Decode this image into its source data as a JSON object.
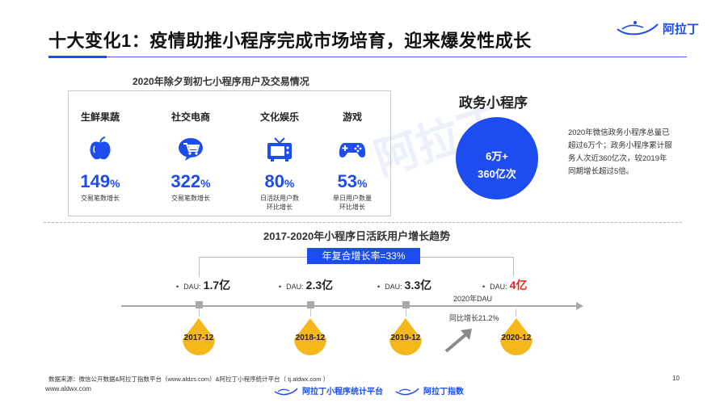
{
  "header": {
    "title": "十大变化1：疫情助推小程序完成市场培育，迎来爆发性成长",
    "logo_text": "阿拉丁"
  },
  "watermark": "阿拉丁",
  "left_panel": {
    "title": "2020年除夕到初七小程序用户及交易情况",
    "categories": [
      {
        "name": "生鲜果蔬",
        "icon": "apple-icon",
        "value": "149",
        "unit": "%",
        "desc": "交易笔数增长",
        "desc2": ""
      },
      {
        "name": "社交电商",
        "icon": "shopping-cart-icon",
        "value": "322",
        "unit": "%",
        "desc": "交易笔数增长",
        "desc2": ""
      },
      {
        "name": "文化娱乐",
        "icon": "tv-icon",
        "value": "80",
        "unit": "%",
        "desc": "日活跃用户数",
        "desc2": "环比增长"
      },
      {
        "name": "游戏",
        "icon": "gamepad-icon",
        "value": "53",
        "unit": "%",
        "desc": "单日用户数量",
        "desc2": "环比增长"
      }
    ]
  },
  "gov_panel": {
    "title": "政务小程序",
    "circle_line1": "6万+",
    "circle_line2": "360亿次",
    "desc": "2020年微信政务小程序总量已超过6万个；政务小程序累计服务人次近360亿次，较2019年同期增长超过5倍。"
  },
  "trend": {
    "title": "2017-2020年小程序日活跃用户增长趋势",
    "cagr": "年复合增长率=33%",
    "points": [
      {
        "year": "2017-12",
        "dau_label": "DAU:",
        "dau_value": "1.7亿"
      },
      {
        "year": "2018-12",
        "dau_label": "DAU:",
        "dau_value": "2.3亿"
      },
      {
        "year": "2019-12",
        "dau_label": "DAU:",
        "dau_value": "3.3亿"
      },
      {
        "year": "2020-12",
        "dau_label": "DAU:",
        "dau_value": "4亿"
      }
    ],
    "dau_2020_label": "2020年DAU",
    "yoy_label": "同比增长21.2%",
    "bullet": "•",
    "colors": {
      "accent": "#1d4df0",
      "highlight": "#e8261b",
      "drop": "#f5b81b"
    }
  },
  "footer": {
    "source": "数据来源：微信公开数据&阿拉丁指数平台（www.aldzs.com）&阿拉丁小程序统计平台（ tj.aldwx.com ）",
    "site": "www.aldwx.com",
    "page": "10",
    "logo1": "阿拉丁小程序统计平台",
    "logo2": "阿拉丁指数"
  }
}
